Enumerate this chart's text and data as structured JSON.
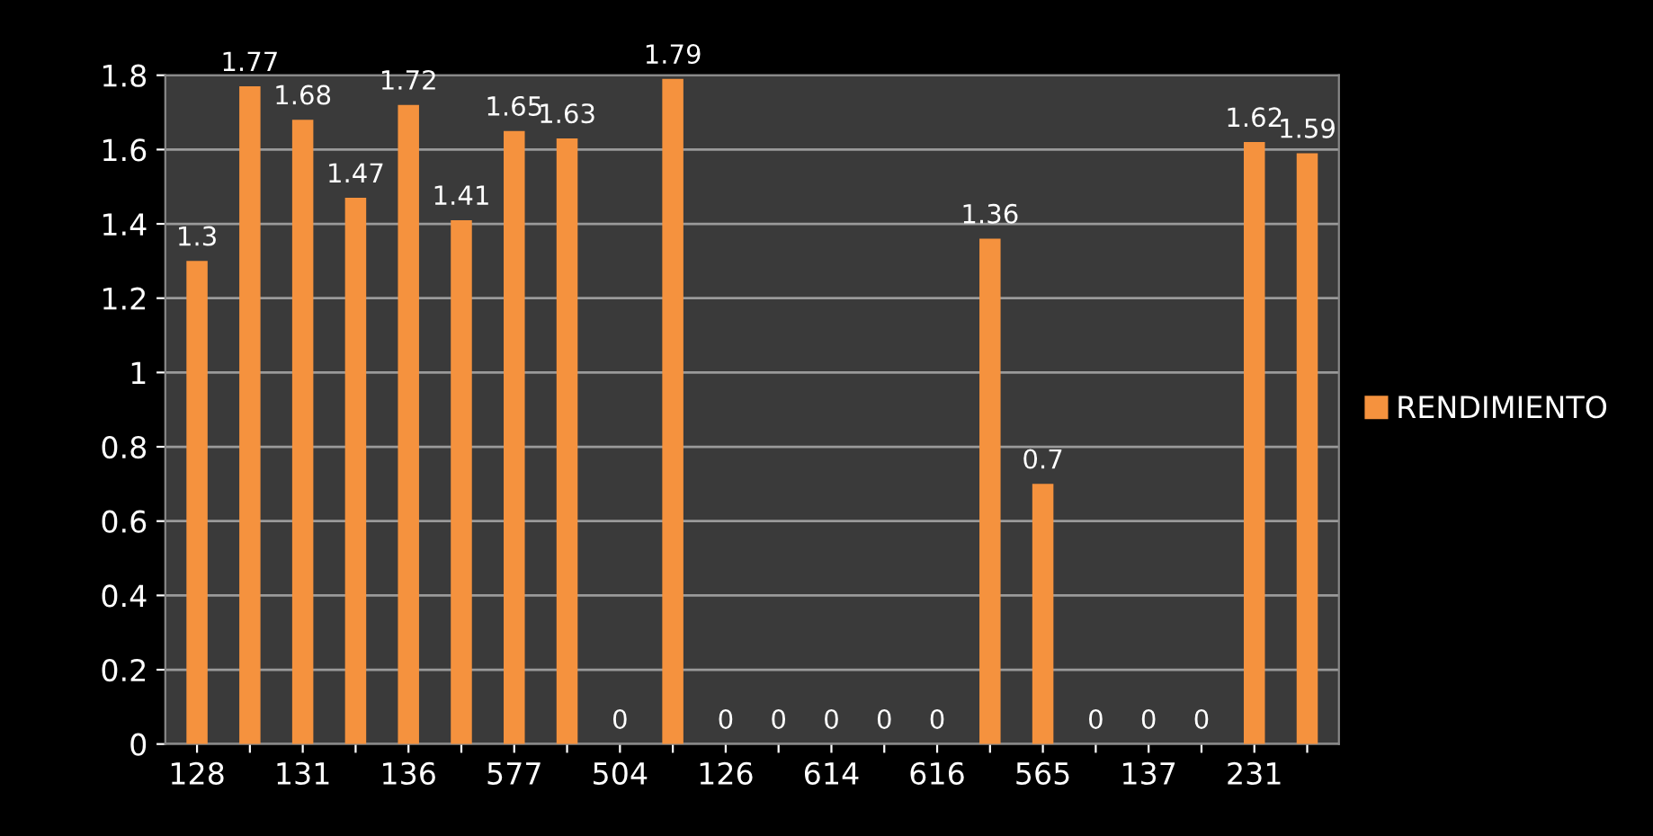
{
  "chart_data": {
    "type": "bar",
    "categories": [
      "128",
      null,
      "131",
      null,
      "136",
      null,
      "577",
      null,
      "504",
      null,
      "126",
      null,
      "614",
      null,
      "616",
      null,
      "565",
      null,
      "137",
      null,
      "231",
      null
    ],
    "series": [
      {
        "name": "RENDIMIENTO",
        "color": "#f5923e",
        "values": [
          1.3,
          1.77,
          1.68,
          1.47,
          1.72,
          1.41,
          1.65,
          1.63,
          0,
          1.79,
          0,
          0,
          0,
          0,
          0,
          1.36,
          0.7,
          0,
          0,
          0,
          1.62,
          1.59
        ]
      }
    ],
    "ylim": [
      0,
      1.8
    ],
    "yticks": [
      0,
      0.2,
      0.4,
      0.6,
      0.8,
      1,
      1.2,
      1.4,
      1.6,
      1.8
    ],
    "grid": "y",
    "legend": "right",
    "data_labels": true
  }
}
